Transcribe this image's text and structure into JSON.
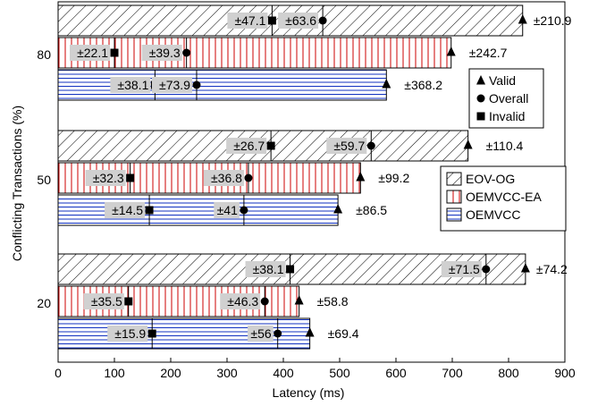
{
  "chart_data": {
    "type": "bar",
    "orientation": "horizontal",
    "xlabel": "Latency (ms)",
    "ylabel": "Conflicting Transactions (%)",
    "xlim": [
      0,
      900
    ],
    "xticks": [
      0,
      100,
      200,
      300,
      400,
      500,
      600,
      700,
      800,
      900
    ],
    "categories": [
      "80",
      "50",
      "20"
    ],
    "legend": {
      "placement": "center-right"
    },
    "series": [
      {
        "name": "EOV-OG",
        "pattern": "diagonal-hatch",
        "color": "#000000",
        "points": [
          {
            "category": "80",
            "invalid": 380,
            "invalid_err": "±47.1",
            "overall": 470,
            "overall_err": "±63.6",
            "valid": 825,
            "valid_err": "±210.9"
          },
          {
            "category": "50",
            "invalid": 378,
            "invalid_err": "±26.7",
            "overall": 556,
            "overall_err": "±59.7",
            "valid": 728,
            "valid_err": "±110.4"
          },
          {
            "category": "20",
            "invalid": 412,
            "invalid_err": "±38.1",
            "overall": 760,
            "overall_err": "±71.5",
            "valid": 830,
            "valid_err": "±74.2"
          }
        ]
      },
      {
        "name": "OEMVCC-EA",
        "pattern": "vertical-lines",
        "color": "#cc0000",
        "points": [
          {
            "category": "80",
            "invalid": 100,
            "invalid_err": "±22.1",
            "overall": 228,
            "overall_err": "±39.3",
            "valid": 698,
            "valid_err": "±242.7"
          },
          {
            "category": "50",
            "invalid": 128,
            "invalid_err": "±32.3",
            "overall": 338,
            "overall_err": "±36.8",
            "valid": 537,
            "valid_err": "±99.2"
          },
          {
            "category": "20",
            "invalid": 125,
            "invalid_err": "±35.5",
            "overall": 367,
            "overall_err": "±46.3",
            "valid": 428,
            "valid_err": "±58.8"
          }
        ]
      },
      {
        "name": "OEMVCC",
        "pattern": "horizontal-lines",
        "color": "#1030c0",
        "points": [
          {
            "category": "80",
            "invalid": 172,
            "invalid_err": "±38.1",
            "overall": 246,
            "overall_err": "±73.9",
            "valid": 583,
            "valid_err": "±368.2"
          },
          {
            "category": "50",
            "invalid": 162,
            "invalid_err": "±14.5",
            "overall": 330,
            "overall_err": "±41",
            "valid": 497,
            "valid_err": "±86.5"
          },
          {
            "category": "20",
            "invalid": 167,
            "invalid_err": "±15.9",
            "overall": 390,
            "overall_err": "±56",
            "valid": 447,
            "valid_err": "±69.4"
          }
        ]
      }
    ],
    "marker_legend": [
      {
        "marker": "triangle",
        "label": "Valid"
      },
      {
        "marker": "circle",
        "label": "Overall"
      },
      {
        "marker": "square",
        "label": "Invalid"
      }
    ]
  }
}
